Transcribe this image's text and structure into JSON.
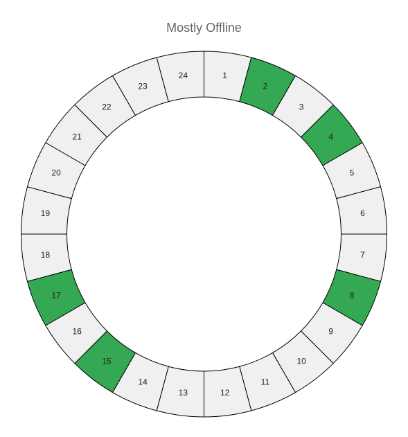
{
  "chart_data": {
    "type": "pie",
    "title": "Mostly Offline",
    "subtype": "donut",
    "start_at": "top",
    "direction": "clockwise",
    "slices": [
      {
        "label": "1",
        "value": 1,
        "status": "offline"
      },
      {
        "label": "2",
        "value": 1,
        "status": "online"
      },
      {
        "label": "3",
        "value": 1,
        "status": "offline"
      },
      {
        "label": "4",
        "value": 1,
        "status": "online"
      },
      {
        "label": "5",
        "value": 1,
        "status": "offline"
      },
      {
        "label": "6",
        "value": 1,
        "status": "offline"
      },
      {
        "label": "7",
        "value": 1,
        "status": "offline"
      },
      {
        "label": "8",
        "value": 1,
        "status": "online"
      },
      {
        "label": "9",
        "value": 1,
        "status": "offline"
      },
      {
        "label": "10",
        "value": 1,
        "status": "offline"
      },
      {
        "label": "11",
        "value": 1,
        "status": "offline"
      },
      {
        "label": "12",
        "value": 1,
        "status": "offline"
      },
      {
        "label": "13",
        "value": 1,
        "status": "offline"
      },
      {
        "label": "14",
        "value": 1,
        "status": "offline"
      },
      {
        "label": "15",
        "value": 1,
        "status": "online"
      },
      {
        "label": "16",
        "value": 1,
        "status": "offline"
      },
      {
        "label": "17",
        "value": 1,
        "status": "online"
      },
      {
        "label": "18",
        "value": 1,
        "status": "offline"
      },
      {
        "label": "19",
        "value": 1,
        "status": "offline"
      },
      {
        "label": "20",
        "value": 1,
        "status": "offline"
      },
      {
        "label": "21",
        "value": 1,
        "status": "offline"
      },
      {
        "label": "22",
        "value": 1,
        "status": "offline"
      },
      {
        "label": "23",
        "value": 1,
        "status": "offline"
      },
      {
        "label": "24",
        "value": 1,
        "status": "offline"
      }
    ],
    "colors": {
      "online": "#34a853",
      "offline": "#f0f0f0",
      "stroke": "#000000"
    }
  }
}
